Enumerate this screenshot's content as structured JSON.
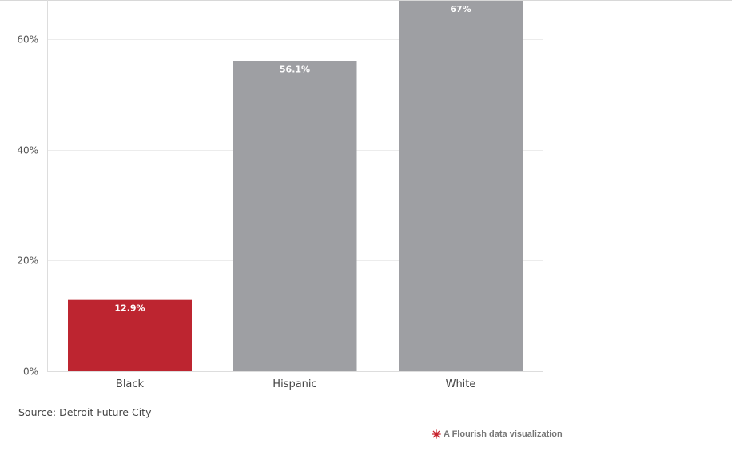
{
  "chart_data": {
    "type": "bar",
    "categories": [
      "Black",
      "Hispanic",
      "White"
    ],
    "values": [
      12.9,
      56.1,
      67
    ],
    "data_labels": [
      "12.9%",
      "56.1%",
      "67%"
    ],
    "ylim": [
      0,
      67
    ],
    "yticks": [
      0,
      20,
      40,
      60
    ],
    "ytick_labels": [
      "0%",
      "20%",
      "40%",
      "60%"
    ],
    "title": "",
    "xlabel": "",
    "ylabel": "",
    "grid": true,
    "legend": "none"
  },
  "colors": {
    "highlight": "#bd2530",
    "default_bar": "#9e9fa3",
    "grid": "#ececec",
    "axis": "#dddddd"
  },
  "highlight_category": "Black",
  "footer": {
    "source": "Source: Detroit Future City",
    "credit": "A Flourish data visualization",
    "credit_icon": "flourish-logo-icon"
  }
}
